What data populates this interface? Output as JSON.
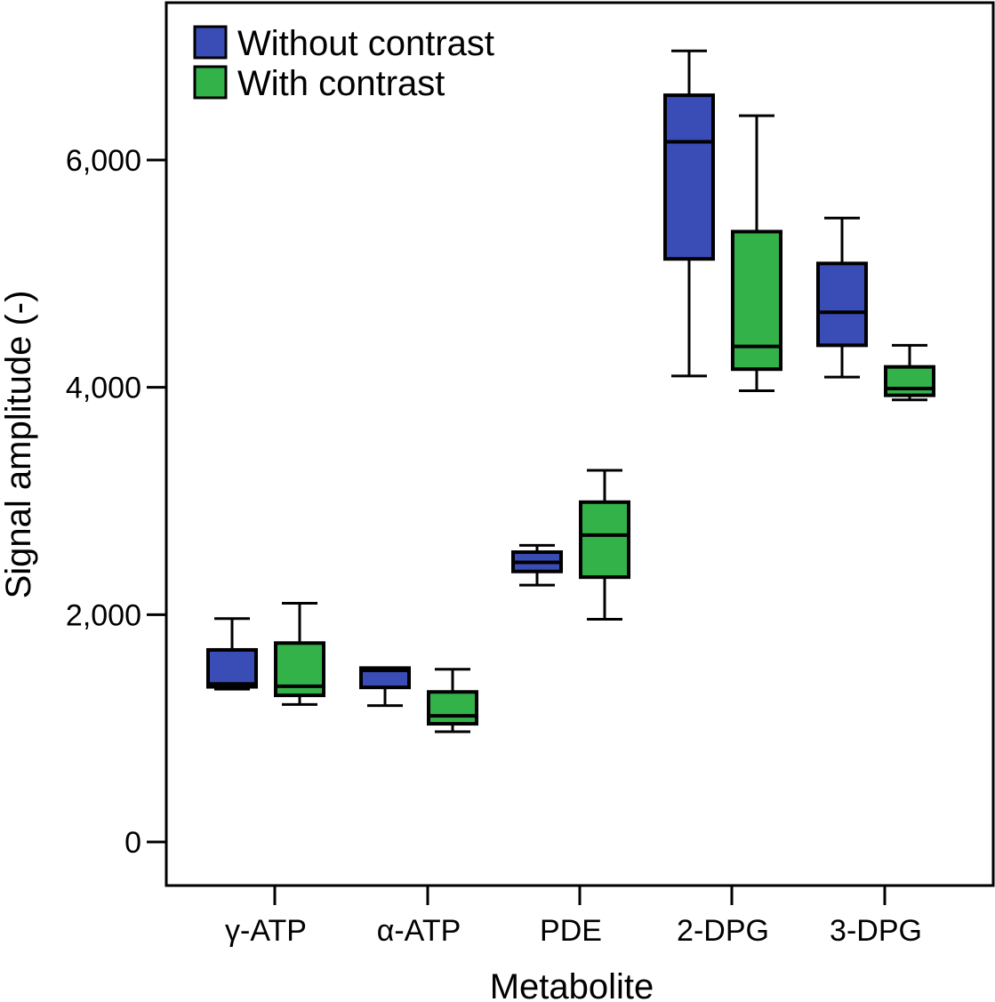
{
  "chart_data": {
    "type": "box",
    "xlabel": "Metabolite",
    "ylabel": "Signal amplitude (-)",
    "ylim": [
      -230,
      7400
    ],
    "yticks": [
      0,
      2000,
      4000,
      6000
    ],
    "ytick_labels": [
      "0",
      "2,000",
      "4,000",
      "6,000"
    ],
    "categories": [
      "γ-ATP",
      "α-ATP",
      "PDE",
      "2-DPG",
      "3-DPG"
    ],
    "legend_position": "top-left",
    "colors": {
      "Without contrast": "#3a4cb6",
      "With contrast": "#34b24a"
    },
    "series": [
      {
        "name": "Without contrast",
        "boxes": [
          {
            "min": 1345,
            "q1": 1365,
            "median": 1390,
            "q3": 1690,
            "max": 1965
          },
          {
            "min": 1200,
            "q1": 1360,
            "median": 1510,
            "q3": 1530,
            "max": 1530
          },
          {
            "min": 2260,
            "q1": 2380,
            "median": 2460,
            "q3": 2550,
            "max": 2610
          },
          {
            "min": 4100,
            "q1": 5130,
            "median": 6160,
            "q3": 6570,
            "max": 6960
          },
          {
            "min": 4090,
            "q1": 4370,
            "median": 4660,
            "q3": 5090,
            "max": 5490
          }
        ]
      },
      {
        "name": "With contrast",
        "boxes": [
          {
            "min": 1210,
            "q1": 1290,
            "median": 1370,
            "q3": 1750,
            "max": 2100
          },
          {
            "min": 970,
            "q1": 1040,
            "median": 1110,
            "q3": 1320,
            "max": 1520
          },
          {
            "min": 1960,
            "q1": 2330,
            "median": 2700,
            "q3": 2990,
            "max": 3270
          },
          {
            "min": 3970,
            "q1": 4160,
            "median": 4360,
            "q3": 5370,
            "max": 6390
          },
          {
            "min": 3890,
            "q1": 3930,
            "median": 3990,
            "q3": 4180,
            "max": 4370
          }
        ]
      }
    ]
  }
}
